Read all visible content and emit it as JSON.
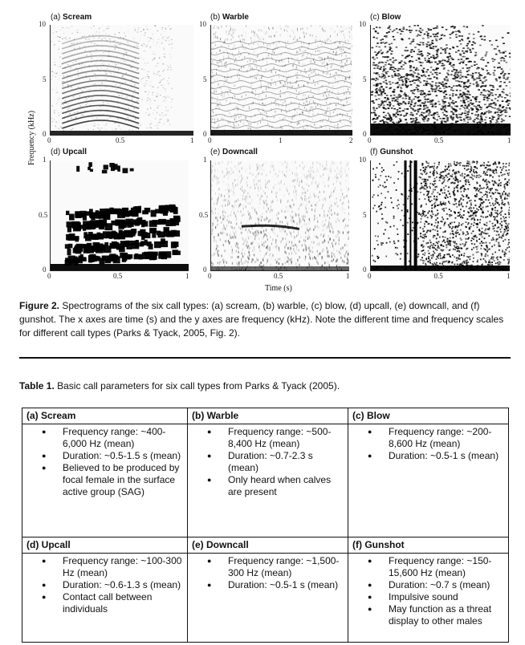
{
  "figure": {
    "y_axis_label": "Frequency (kHz)",
    "x_axis_label": "Time (s)",
    "panels": [
      {
        "letter": "(a)",
        "name": "Scream",
        "yticks": [
          "10",
          "5",
          "0"
        ],
        "xticks": [
          "0",
          "0.5",
          "1"
        ]
      },
      {
        "letter": "(b)",
        "name": "Warble",
        "yticks": [
          "10",
          "5",
          "0"
        ],
        "xticks": [
          "0",
          "1",
          "2"
        ]
      },
      {
        "letter": "(c)",
        "name": "Blow",
        "yticks": [
          "10",
          "5",
          "0"
        ],
        "xticks": [
          "0",
          "0.5",
          "1"
        ]
      },
      {
        "letter": "(d)",
        "name": "Upcall",
        "yticks": [
          "1",
          "0.5",
          "0"
        ],
        "xticks": [
          "0",
          "0.5",
          "1"
        ]
      },
      {
        "letter": "(e)",
        "name": "Downcall",
        "yticks": [
          "1",
          "0.5",
          "0"
        ],
        "xticks": [
          "0",
          "0.5",
          "1"
        ]
      },
      {
        "letter": "(f)",
        "name": "Gunshot",
        "yticks": [
          "10",
          "5",
          "0"
        ],
        "xticks": [
          "0",
          "0.5",
          "1"
        ]
      }
    ]
  },
  "caption": {
    "label": "Figure 2.",
    "text": " Spectrograms of the six call types: (a) scream, (b) warble, (c) blow, (d) upcall, (e) downcall, and (f) gunshot. The x axes are time (s) and the y axes are frequency (kHz). Note the different time and frequency scales for different call types (Parks & Tyack, 2005, Fig. 2)."
  },
  "table_caption": {
    "label": "Table 1.",
    "text": " Basic call parameters for six call types from Parks & Tyack (2005)."
  },
  "table": {
    "rows": [
      [
        {
          "head": "(a)  Scream",
          "bullets": [
            "Frequency range: ~400-6,000 Hz (mean)",
            "Duration: ~0.5-1.5 s (mean)",
            "Believed to be produced by focal female in the surface active group (SAG)"
          ]
        },
        {
          "head": "(b)  Warble",
          "bullets": [
            "Frequency range: ~500-8,400 Hz (mean)",
            "Duration: ~0.7-2.3 s (mean)",
            "Only heard when calves are present"
          ]
        },
        {
          "head": "(c)  Blow",
          "bullets": [
            "Frequency range: ~200-8,600 Hz (mean)",
            "Duration: ~0.5-1 s (mean)"
          ]
        }
      ],
      [
        {
          "head": "(d)  Upcall",
          "bullets": [
            "Frequency range: ~100-300 Hz (mean)",
            "Duration: ~0.6-1.3 s (mean)",
            "Contact call between individuals"
          ]
        },
        {
          "head": "(e)  Downcall",
          "bullets": [
            "Frequency range: ~1,500-300 Hz (mean)",
            "Duration: ~0.5-1 s (mean)"
          ]
        },
        {
          "head": "(f)  Gunshot",
          "bullets": [
            "Frequency range: ~150-15,600 Hz (mean)",
            "Duration: ~0.7 s (mean)",
            "Impulsive sound",
            "May function as a threat display to other males"
          ]
        }
      ]
    ]
  }
}
